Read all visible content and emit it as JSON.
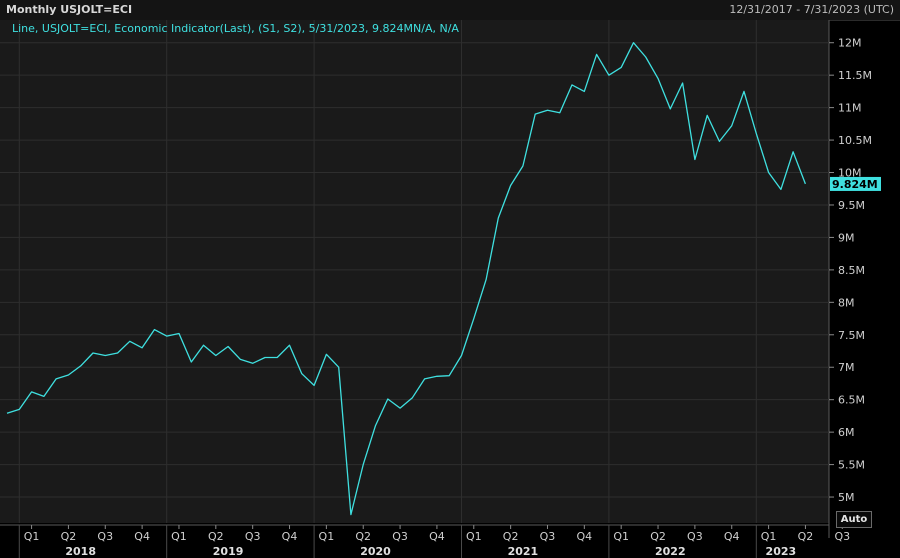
{
  "header": {
    "title": "Monthly USJOLT=ECI",
    "date_range": "12/31/2017 - 7/31/2023 (UTC)"
  },
  "legend": {
    "text": "Line, USJOLT=ECI, Economic Indicator(Last), (S1, S2), 5/31/2023, 9.824MN/A, N/A"
  },
  "controls": {
    "auto_label": "Auto"
  },
  "colors": {
    "background": "#000000",
    "plot_background": "#1a1a1a",
    "line": "#3fe0e0",
    "last_value_flag": "#3fe0e0",
    "grid": "#2e2e2e"
  },
  "chart_data": {
    "type": "line",
    "x_start": "2017-12",
    "x_end": "2023-07",
    "ylim": [
      4.6,
      12.35
    ],
    "yticks": [
      {
        "value": 12,
        "label": "12M"
      },
      {
        "value": 11.5,
        "label": "11.5M"
      },
      {
        "value": 11,
        "label": "11M"
      },
      {
        "value": 10.5,
        "label": "10.5M"
      },
      {
        "value": 10,
        "label": "10M"
      },
      {
        "value": 9.5,
        "label": "9.5M"
      },
      {
        "value": 9,
        "label": "9M"
      },
      {
        "value": 8.5,
        "label": "8.5M"
      },
      {
        "value": 8,
        "label": "8M"
      },
      {
        "value": 7.5,
        "label": "7.5M"
      },
      {
        "value": 7,
        "label": "7M"
      },
      {
        "value": 6.5,
        "label": "6.5M"
      },
      {
        "value": 6,
        "label": "6M"
      },
      {
        "value": 5.5,
        "label": "5.5M"
      },
      {
        "value": 5,
        "label": "5M"
      }
    ],
    "quarter_ticks": [
      {
        "date": "2018-02",
        "label": "Q1"
      },
      {
        "date": "2018-05",
        "label": "Q2"
      },
      {
        "date": "2018-08",
        "label": "Q3"
      },
      {
        "date": "2018-11",
        "label": "Q4"
      },
      {
        "date": "2019-02",
        "label": "Q1"
      },
      {
        "date": "2019-05",
        "label": "Q2"
      },
      {
        "date": "2019-08",
        "label": "Q3"
      },
      {
        "date": "2019-11",
        "label": "Q4"
      },
      {
        "date": "2020-02",
        "label": "Q1"
      },
      {
        "date": "2020-05",
        "label": "Q2"
      },
      {
        "date": "2020-08",
        "label": "Q3"
      },
      {
        "date": "2020-11",
        "label": "Q4"
      },
      {
        "date": "2021-02",
        "label": "Q1"
      },
      {
        "date": "2021-05",
        "label": "Q2"
      },
      {
        "date": "2021-08",
        "label": "Q3"
      },
      {
        "date": "2021-11",
        "label": "Q4"
      },
      {
        "date": "2022-02",
        "label": "Q1"
      },
      {
        "date": "2022-05",
        "label": "Q2"
      },
      {
        "date": "2022-08",
        "label": "Q3"
      },
      {
        "date": "2022-11",
        "label": "Q4"
      },
      {
        "date": "2023-02",
        "label": "Q1"
      },
      {
        "date": "2023-05",
        "label": "Q2"
      },
      {
        "date": "2023-08",
        "label": "Q3"
      }
    ],
    "years": [
      {
        "date": "2018-06",
        "label": "2018"
      },
      {
        "date": "2019-06",
        "label": "2019"
      },
      {
        "date": "2020-06",
        "label": "2020"
      },
      {
        "date": "2021-06",
        "label": "2021"
      },
      {
        "date": "2022-06",
        "label": "2022"
      },
      {
        "date": "2023-03",
        "label": "2023"
      }
    ],
    "last_value": {
      "value": 9.824,
      "label": "9.824M"
    },
    "series": [
      {
        "dates": [
          "2017-12",
          "2018-01",
          "2018-02",
          "2018-03",
          "2018-04",
          "2018-05",
          "2018-06",
          "2018-07",
          "2018-08",
          "2018-09",
          "2018-10",
          "2018-11",
          "2018-12",
          "2019-01",
          "2019-02",
          "2019-03",
          "2019-04",
          "2019-05",
          "2019-06",
          "2019-07",
          "2019-08",
          "2019-09",
          "2019-10",
          "2019-11",
          "2019-12",
          "2020-01",
          "2020-02",
          "2020-03",
          "2020-04",
          "2020-05",
          "2020-06",
          "2020-07",
          "2020-08",
          "2020-09",
          "2020-10",
          "2020-11",
          "2020-12",
          "2021-01",
          "2021-02",
          "2021-03",
          "2021-04",
          "2021-05",
          "2021-06",
          "2021-07",
          "2021-08",
          "2021-09",
          "2021-10",
          "2021-11",
          "2021-12",
          "2022-01",
          "2022-02",
          "2022-03",
          "2022-04",
          "2022-05",
          "2022-06",
          "2022-07",
          "2022-08",
          "2022-09",
          "2022-10",
          "2022-11",
          "2022-12",
          "2023-01",
          "2023-02",
          "2023-03",
          "2023-04",
          "2023-05"
        ],
        "values": [
          6.29,
          6.35,
          6.62,
          6.55,
          6.82,
          6.88,
          7.02,
          7.22,
          7.18,
          7.22,
          7.4,
          7.3,
          7.58,
          7.48,
          7.52,
          7.08,
          7.34,
          7.18,
          7.32,
          7.12,
          7.06,
          7.15,
          7.15,
          7.34,
          6.9,
          6.72,
          7.2,
          7.0,
          4.73,
          5.5,
          6.1,
          6.51,
          6.37,
          6.53,
          6.82,
          6.86,
          6.87,
          7.18,
          7.75,
          8.35,
          9.3,
          9.8,
          10.1,
          10.9,
          10.96,
          10.92,
          11.35,
          11.25,
          11.82,
          11.5,
          11.62,
          12.0,
          11.78,
          11.45,
          10.98,
          11.38,
          10.2,
          10.88,
          10.48,
          10.72,
          11.25,
          10.6,
          10.0,
          9.74,
          10.32,
          9.824
        ]
      }
    ]
  }
}
